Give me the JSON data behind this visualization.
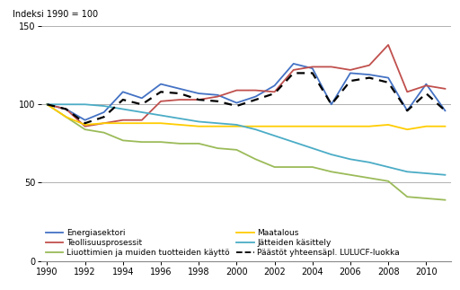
{
  "years": [
    1990,
    1991,
    1992,
    1993,
    1994,
    1995,
    1996,
    1997,
    1998,
    1999,
    2000,
    2001,
    2002,
    2003,
    2004,
    2005,
    2006,
    2007,
    2008,
    2009,
    2010,
    2011
  ],
  "energiasektori": [
    100,
    97,
    90,
    95,
    108,
    104,
    113,
    110,
    107,
    106,
    101,
    105,
    112,
    126,
    123,
    100,
    120,
    119,
    117,
    96,
    113,
    96
  ],
  "teollisuusprosessit": [
    100,
    97,
    86,
    88,
    90,
    90,
    102,
    103,
    103,
    105,
    109,
    109,
    108,
    122,
    124,
    124,
    122,
    125,
    138,
    108,
    112,
    110
  ],
  "liuottimet": [
    100,
    92,
    84,
    82,
    77,
    76,
    76,
    75,
    75,
    72,
    71,
    65,
    60,
    60,
    60,
    57,
    55,
    53,
    51,
    41,
    40,
    39
  ],
  "maatalous": [
    100,
    92,
    87,
    88,
    88,
    88,
    88,
    87,
    86,
    86,
    86,
    86,
    86,
    86,
    86,
    86,
    86,
    86,
    87,
    84,
    86,
    86
  ],
  "jatteiden_kasittely": [
    100,
    100,
    100,
    99,
    97,
    95,
    93,
    91,
    89,
    88,
    87,
    84,
    80,
    76,
    72,
    68,
    65,
    63,
    60,
    57,
    56,
    55
  ],
  "paastot_yhteensa": [
    100,
    97,
    88,
    92,
    103,
    100,
    108,
    107,
    103,
    102,
    99,
    103,
    107,
    120,
    120,
    100,
    115,
    117,
    114,
    96,
    107,
    96
  ],
  "colors": {
    "energiasektori": "#4472C4",
    "teollisuusprosessit": "#C0504D",
    "liuottimet": "#9BBB59",
    "maatalous": "#FFCC00",
    "jatteiden_kasittely": "#4BACC6",
    "paastot_yhteensa": "#000000"
  },
  "ylabel": "Indeksi 1990 = 100",
  "ylim": [
    0,
    150
  ],
  "xlim_min": 1990,
  "xlim_max": 2011,
  "yticks": [
    0,
    50,
    100,
    150
  ],
  "xticks": [
    1990,
    1992,
    1994,
    1996,
    1998,
    2000,
    2002,
    2004,
    2006,
    2008,
    2010
  ],
  "legend_labels": [
    "Energiasektori",
    "Teollisuusprosessit",
    "Liuottimien ja muiden tuotteiden käyttö",
    "Maatalous",
    "Jätteiden käsittely",
    "Päästöt yhteensäpl. LULUCF-luokka"
  ],
  "background_color": "#ffffff",
  "grid_color": "#b0b0b0"
}
